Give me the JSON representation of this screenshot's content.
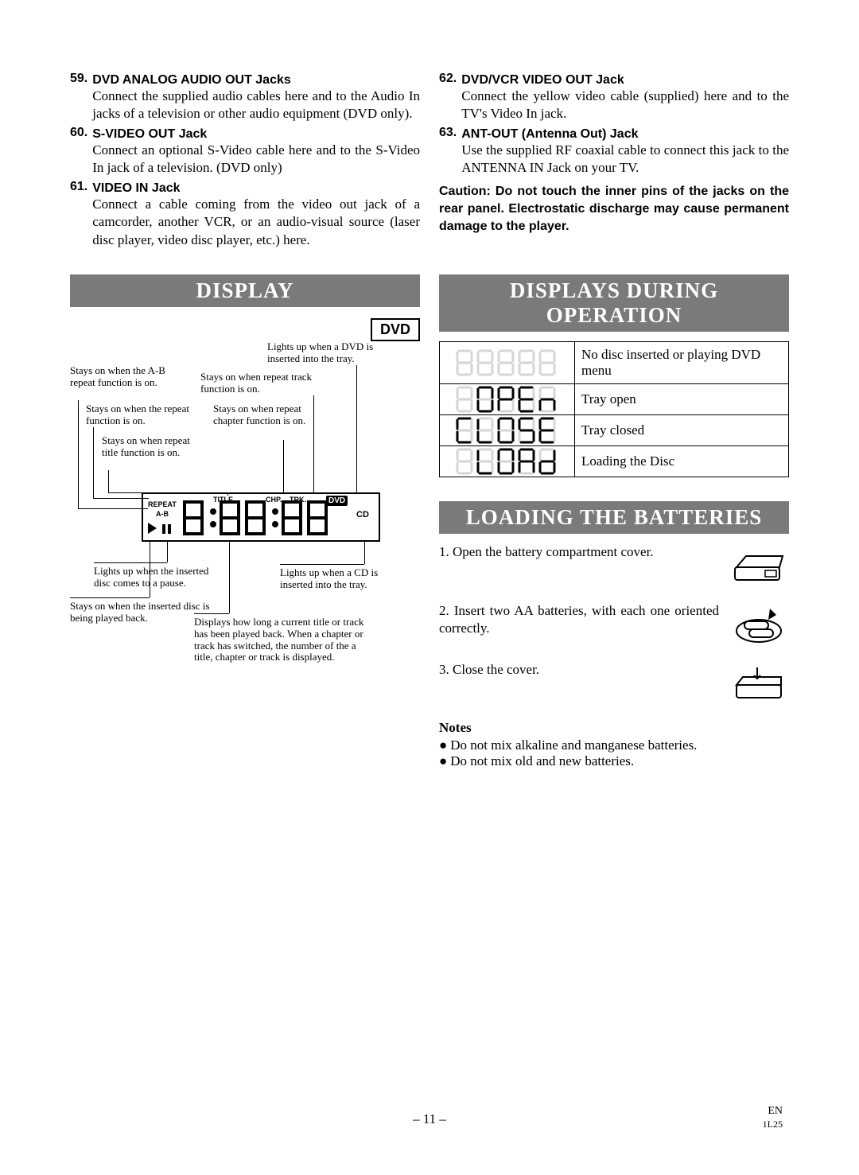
{
  "left_jacks": [
    {
      "num": "59.",
      "title": "DVD ANALOG AUDIO OUT Jacks",
      "desc": "Connect the supplied audio cables here and to the Audio In jacks of a television or other audio equipment (DVD only)."
    },
    {
      "num": "60.",
      "title": "S-VIDEO OUT Jack",
      "desc": "Connect an optional S-Video cable here and to the S-Video In jack of a television. (DVD only)"
    },
    {
      "num": "61.",
      "title": "VIDEO IN Jack",
      "desc": "Connect a cable coming from the video out jack of a camcorder, another VCR, or an audio-visual source (laser disc player, video disc player, etc.) here."
    }
  ],
  "right_jacks": [
    {
      "num": "62.",
      "title": "DVD/VCR VIDEO OUT Jack",
      "desc": "Connect the yellow video cable (supplied) here and to the TV's Video In jack."
    },
    {
      "num": "63.",
      "title": "ANT-OUT (Antenna Out) Jack",
      "desc": "Use the supplied RF coaxial cable to connect this jack to the ANTENNA IN Jack on your TV."
    }
  ],
  "caution": "Caution: Do not touch the inner pins of the jacks on the rear panel. Electrostatic discharge may cause permanent damage to the player.",
  "sections": {
    "display": "DISPLAY",
    "during": "DISPLAYS DURING OPERATION",
    "batteries": "LOADING THE BATTERIES"
  },
  "dvd_badge": "DVD",
  "annot": {
    "dvd_light": "Lights up when a DVD is inserted into the tray.",
    "ab": "Stays on when the A-B repeat function is on.",
    "repeat_track": "Stays on when repeat track function is on.",
    "repeat": "Stays on when the repeat function is on.",
    "repeat_chapter": "Stays on when repeat chapter function is on.",
    "repeat_title": "Stays on when repeat title function is on.",
    "pause": "Lights up when the inserted disc comes to a pause.",
    "cd": "Lights up when a CD is inserted into the tray.",
    "playing": "Stays on when the inserted disc is being played back.",
    "counter": "Displays how long a current title or track has been played back. When a chapter or track has switched, the number of the a title, chapter or track is displayed."
  },
  "disp_labels": {
    "title": "TITLE",
    "chp": "CHP.",
    "trk": "TRK.",
    "dvd": "DVD",
    "cd": "CD",
    "repeat": "REPEAT",
    "ab": "A-B",
    "digits": "8:88:88"
  },
  "op_rows": [
    {
      "img_label": "blank",
      "text": "No disc inserted or playing DVD menu"
    },
    {
      "img_label": "OPEN",
      "text": "Tray open"
    },
    {
      "img_label": "CLOSE",
      "text": "Tray closed"
    },
    {
      "img_label": "LOAD",
      "text": "Loading the Disc"
    }
  ],
  "battery_steps": [
    "1. Open the battery compartment cover.",
    "2. Insert two AA batteries, with each one oriented correctly.",
    "3. Close the cover."
  ],
  "notes_heading": "Notes",
  "notes": [
    "Do not mix alkaline and manganese batteries.",
    "Do not mix old and new batteries."
  ],
  "page_number": "– 11 –",
  "page_code_top": "EN",
  "page_code_bot": "1L25"
}
